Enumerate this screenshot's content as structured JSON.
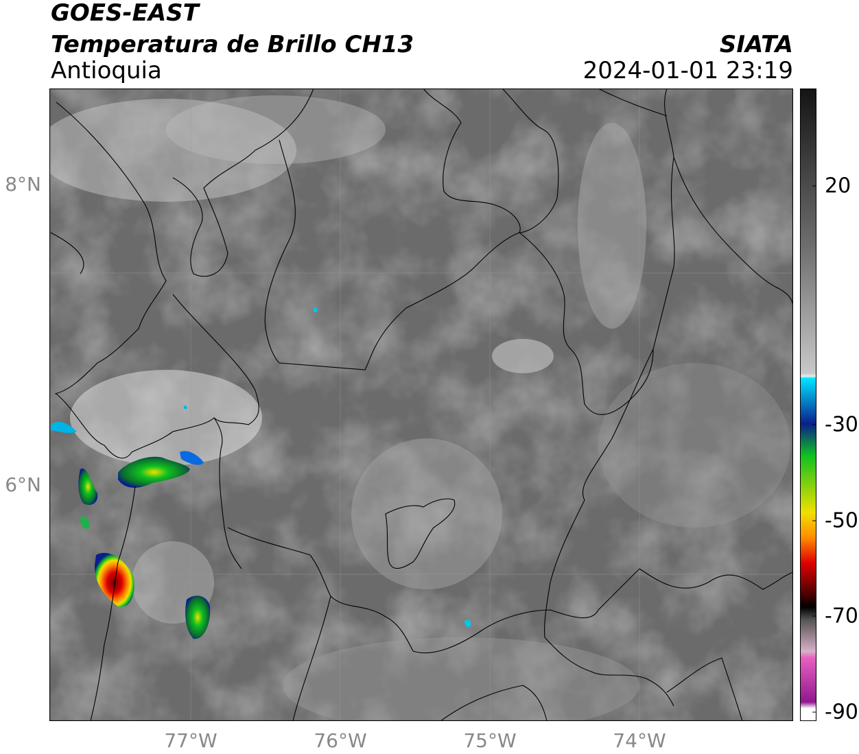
{
  "header": {
    "satellite": "GOES-EAST",
    "product": "Temperatura de Brillo CH13",
    "region": "Antioquia",
    "agency": "SIATA",
    "datetime": "2024-01-01 23:19"
  },
  "map": {
    "lat_labels": [
      "8°N",
      "6°N"
    ],
    "lon_labels": [
      "77°W",
      "76°W",
      "75°W",
      "74°W"
    ],
    "background_colors": [
      "#555555",
      "#6e6e6e",
      "#9a9a9a",
      "#d8d8d8"
    ]
  },
  "colorbar": {
    "tick_labels": [
      "20",
      "-30",
      "-50",
      "-70",
      "-90"
    ],
    "colors": {
      "warm": "#141414",
      "gray": "#8c8c8c",
      "white": "#f0f0f0",
      "cyan": "#00e5ff",
      "blue": "#0a1e8c",
      "green": "#10c020",
      "yellow": "#f0e000",
      "orange": "#ff8c00",
      "red": "#e00000",
      "darkred": "#4a0000",
      "pink": "#e860c0",
      "purple": "#901890"
    }
  }
}
